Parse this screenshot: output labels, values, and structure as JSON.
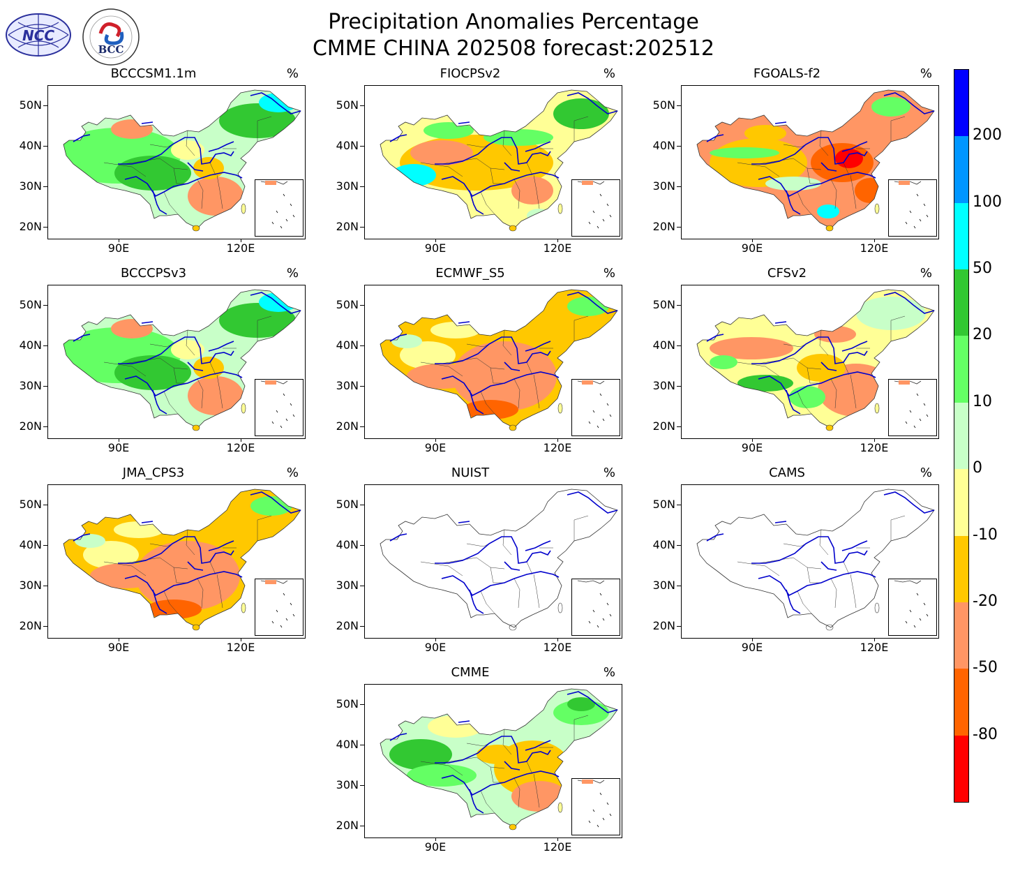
{
  "header": {
    "title_line1": "Precipitation Anomalies Percentage",
    "title_line2": "CMME CHINA 202508 forecast:202512",
    "logo_ncc_text": "NCC",
    "logo_bcc_text": "BCC"
  },
  "axes": {
    "lat_labels": [
      "50N",
      "40N",
      "30N",
      "20N"
    ],
    "lon_labels": [
      "90E",
      "120E"
    ]
  },
  "unit": "%",
  "panels": [
    {
      "name": "BCCCSM1.1m",
      "pattern": "wet_west"
    },
    {
      "name": "FIOCPSv2",
      "pattern": "mixed_dry"
    },
    {
      "name": "FGOALS-f2",
      "pattern": "very_dry"
    },
    {
      "name": "BCCCPSv3",
      "pattern": "wet_west"
    },
    {
      "name": "ECMWF_S5",
      "pattern": "dry"
    },
    {
      "name": "CFSv2",
      "pattern": "dry_south"
    },
    {
      "name": "JMA_CPS3",
      "pattern": "dry"
    },
    {
      "name": "NUIST",
      "pattern": "empty"
    },
    {
      "name": "CAMS",
      "pattern": "empty"
    },
    {
      "name": "CMME",
      "pattern": "mixed"
    }
  ],
  "colorbar": {
    "labels": [
      "200",
      "100",
      "50",
      "20",
      "10",
      "0",
      "-10",
      "-20",
      "-50",
      "-80"
    ],
    "colors": [
      "#0000ff",
      "#0096ff",
      "#00ffff",
      "#32c832",
      "#64ff64",
      "#c8ffc8",
      "#ffff96",
      "#ffc800",
      "#ff9664",
      "#ff6400",
      "#ff0000"
    ]
  },
  "palette": {
    "very_wet": "#00ffff",
    "wet": "#32c832",
    "mod_wet": "#64ff64",
    "slight_wet": "#c8ffc8",
    "slight_dry": "#ffff96",
    "mod_dry": "#ffc800",
    "dry": "#ff9664",
    "very_dry": "#ff6400",
    "extreme_dry": "#ff0000",
    "river": "#0000cc",
    "border": "#333333"
  }
}
